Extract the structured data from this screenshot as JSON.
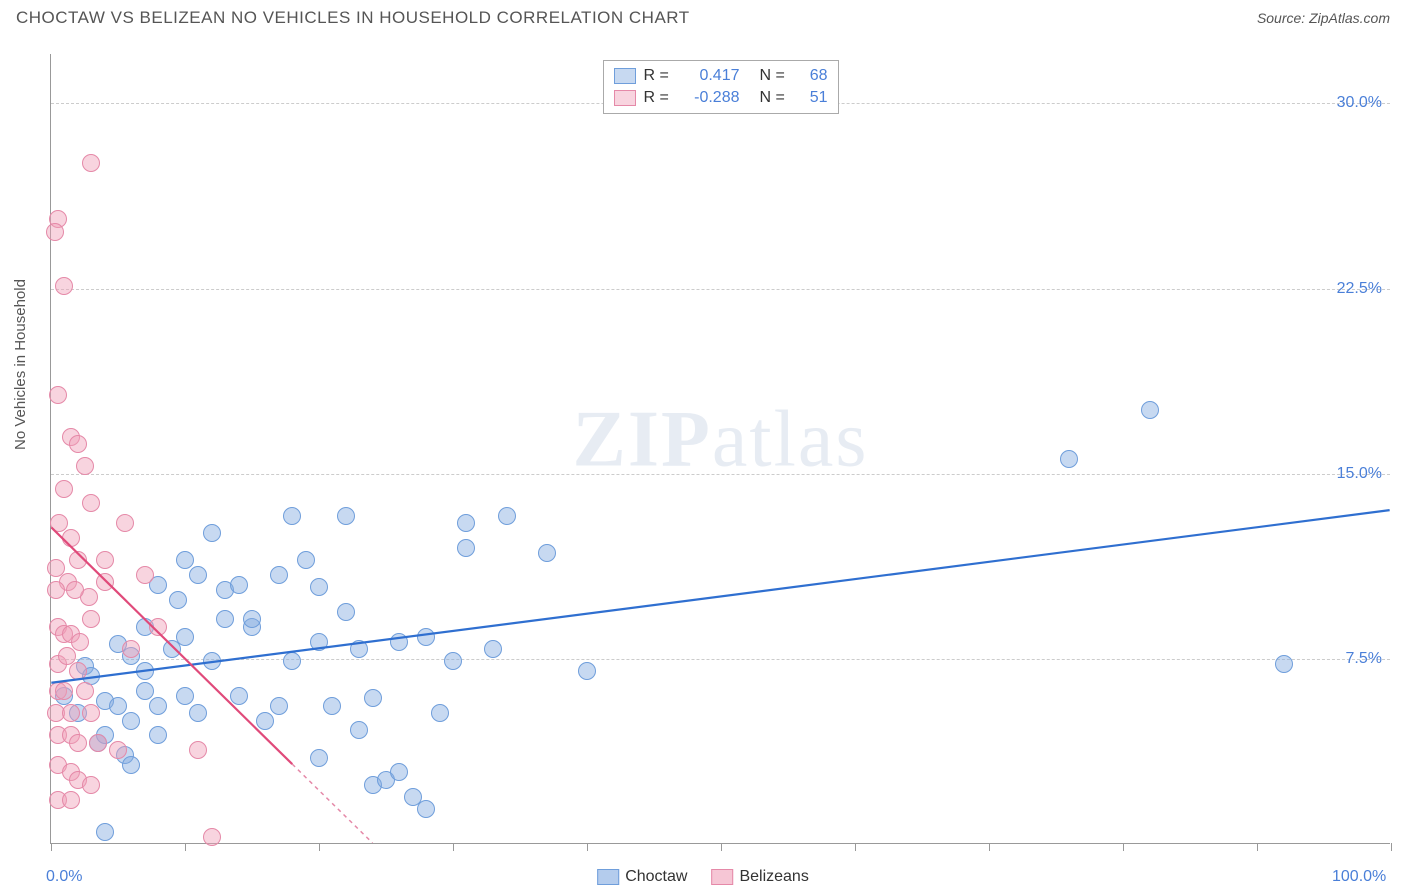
{
  "title": "CHOCTAW VS BELIZEAN NO VEHICLES IN HOUSEHOLD CORRELATION CHART",
  "source_label": "Source: ",
  "source_name": "ZipAtlas.com",
  "ylabel": "No Vehicles in Household",
  "watermark": "ZIPatlas",
  "chart": {
    "type": "scatter",
    "xlim": [
      0,
      100
    ],
    "ylim": [
      0,
      32
    ],
    "x_ticks": [
      0,
      10,
      20,
      30,
      40,
      50,
      60,
      70,
      80,
      90,
      100
    ],
    "x_ticks_shown": {
      "0.0%": 0,
      "100.0%": 100
    },
    "y_gridlines": [
      7.5,
      15.0,
      22.5,
      30.0
    ],
    "y_tick_labels": {
      "7.5%": 7.5,
      "15.0%": 15.0,
      "22.5%": 22.5,
      "30.0%": 30.0
    },
    "point_radius": 9,
    "background": "#ffffff",
    "grid_color": "#cccccc",
    "axis_color": "#999999"
  },
  "series": [
    {
      "name": "Choctaw",
      "color_fill": "rgba(130,170,225,0.45)",
      "color_stroke": "#6f9edb",
      "r_label": "R =",
      "r_value": "0.417",
      "n_label": "N =",
      "n_value": "68",
      "trend": {
        "x1": 0,
        "y1": 6.5,
        "x2": 100,
        "y2": 13.5,
        "color": "#2f6fd0",
        "width": 2.2,
        "dash": ""
      },
      "points": [
        [
          1,
          6
        ],
        [
          2,
          5.3
        ],
        [
          2.5,
          7.2
        ],
        [
          3,
          6.8
        ],
        [
          3.5,
          4.1
        ],
        [
          4,
          5.8
        ],
        [
          4,
          4.4
        ],
        [
          5,
          5.6
        ],
        [
          5,
          8.1
        ],
        [
          5.5,
          3.6
        ],
        [
          6,
          7.6
        ],
        [
          6,
          5
        ],
        [
          7,
          7
        ],
        [
          7,
          8.8
        ],
        [
          8,
          5.6
        ],
        [
          8,
          4.4
        ],
        [
          9,
          7.9
        ],
        [
          9.5,
          9.9
        ],
        [
          10,
          8.4
        ],
        [
          10,
          6
        ],
        [
          11,
          10.9
        ],
        [
          11,
          5.3
        ],
        [
          12,
          7.4
        ],
        [
          12,
          12.6
        ],
        [
          13,
          10.3
        ],
        [
          13,
          9.1
        ],
        [
          14,
          6
        ],
        [
          14,
          10.5
        ],
        [
          15,
          8.8
        ],
        [
          15,
          9.1
        ],
        [
          16,
          5
        ],
        [
          17,
          10.9
        ],
        [
          17,
          5.6
        ],
        [
          18,
          7.4
        ],
        [
          18,
          13.3
        ],
        [
          19,
          11.5
        ],
        [
          20,
          8.2
        ],
        [
          20,
          10.4
        ],
        [
          21,
          5.6
        ],
        [
          22,
          13.3
        ],
        [
          22,
          9.4
        ],
        [
          23,
          4.6
        ],
        [
          23,
          7.9
        ],
        [
          24,
          2.4
        ],
        [
          24,
          5.9
        ],
        [
          25,
          2.6
        ],
        [
          26,
          8.2
        ],
        [
          26,
          2.9
        ],
        [
          27,
          1.9
        ],
        [
          28,
          8.4
        ],
        [
          28,
          1.4
        ],
        [
          29,
          5.3
        ],
        [
          30,
          7.4
        ],
        [
          31,
          13
        ],
        [
          31,
          12
        ],
        [
          33,
          7.9
        ],
        [
          34,
          13.3
        ],
        [
          37,
          11.8
        ],
        [
          40,
          7
        ],
        [
          82,
          17.6
        ],
        [
          76,
          15.6
        ],
        [
          92,
          7.3
        ],
        [
          4,
          0.5
        ],
        [
          6,
          3.2
        ],
        [
          20,
          3.5
        ],
        [
          8,
          10.5
        ],
        [
          10,
          11.5
        ],
        [
          7,
          6.2
        ]
      ]
    },
    {
      "name": "Belizeans",
      "color_fill": "rgba(240,160,185,0.45)",
      "color_stroke": "#e589a8",
      "r_label": "R =",
      "r_value": "-0.288",
      "n_label": "N =",
      "n_value": "51",
      "trend": {
        "x1": 0,
        "y1": 12.8,
        "x2": 18,
        "y2": 3.2,
        "color": "#e04a7a",
        "width": 2.2,
        "dash": ""
      },
      "trend_ext": {
        "x1": 18,
        "y1": 3.2,
        "x2": 24,
        "y2": 0,
        "color": "#e589a8",
        "width": 1.5,
        "dash": "4 4"
      },
      "points": [
        [
          0.5,
          25.3
        ],
        [
          0.3,
          24.8
        ],
        [
          1,
          22.6
        ],
        [
          3,
          27.6
        ],
        [
          0.5,
          18.2
        ],
        [
          1.5,
          16.5
        ],
        [
          2,
          16.2
        ],
        [
          2.5,
          15.3
        ],
        [
          1,
          14.4
        ],
        [
          3,
          13.8
        ],
        [
          0.6,
          13
        ],
        [
          1.5,
          12.4
        ],
        [
          2,
          11.5
        ],
        [
          0.4,
          11.2
        ],
        [
          1.3,
          10.6
        ],
        [
          2.8,
          10
        ],
        [
          0.4,
          10.3
        ],
        [
          1.8,
          10.3
        ],
        [
          0.5,
          8.8
        ],
        [
          1,
          8.5
        ],
        [
          1.5,
          8.5
        ],
        [
          2.2,
          8.2
        ],
        [
          3,
          9.1
        ],
        [
          0.5,
          7.3
        ],
        [
          1.2,
          7.6
        ],
        [
          2,
          7
        ],
        [
          0.5,
          6.2
        ],
        [
          1,
          6.2
        ],
        [
          2.5,
          6.2
        ],
        [
          0.4,
          5.3
        ],
        [
          1.5,
          5.3
        ],
        [
          3,
          5.3
        ],
        [
          0.5,
          4.4
        ],
        [
          1.5,
          4.4
        ],
        [
          2,
          4.1
        ],
        [
          3.5,
          4.1
        ],
        [
          0.5,
          3.2
        ],
        [
          1.5,
          2.9
        ],
        [
          2,
          2.6
        ],
        [
          3,
          2.4
        ],
        [
          0.5,
          1.8
        ],
        [
          1.5,
          1.8
        ],
        [
          4,
          10.6
        ],
        [
          5,
          3.8
        ],
        [
          6,
          7.9
        ],
        [
          8,
          8.8
        ],
        [
          11,
          3.8
        ],
        [
          12,
          0.3
        ],
        [
          7,
          10.9
        ],
        [
          4,
          11.5
        ],
        [
          5.5,
          13
        ]
      ]
    }
  ],
  "legend_bottom": [
    {
      "label": "Choctaw",
      "fill": "rgba(130,170,225,0.6)",
      "stroke": "#6f9edb"
    },
    {
      "label": "Belizeans",
      "fill": "rgba(240,160,185,0.6)",
      "stroke": "#e589a8"
    }
  ]
}
